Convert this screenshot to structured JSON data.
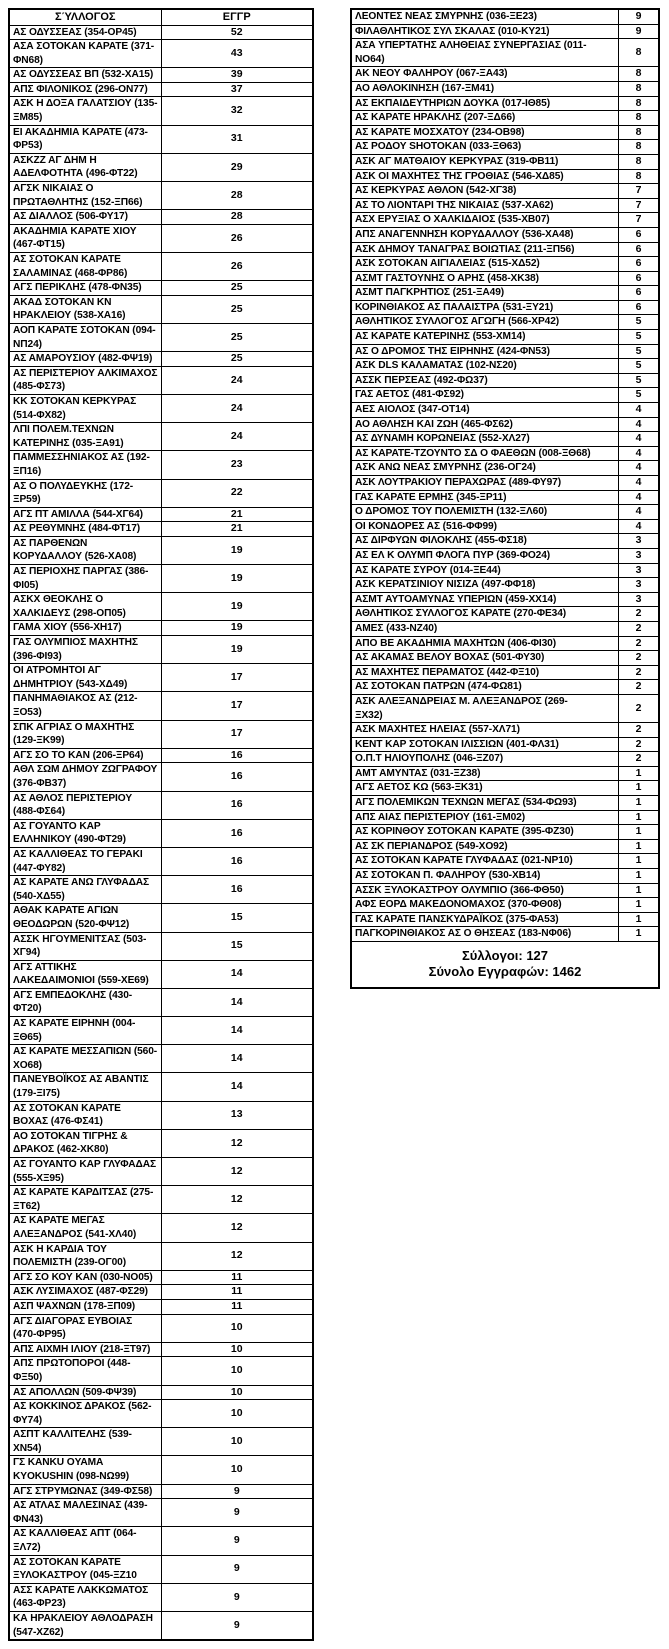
{
  "left_table": {
    "header": {
      "club": "ΣΎΛΛΟΓΟΣ",
      "count": "ΕΓΓΡ"
    },
    "rows": [
      {
        "club": "ΑΣ ΟΔΥΣΣΕΑΣ (354-ΟΡ45)",
        "count": 52
      },
      {
        "club": "ΑΣΑ ΣΟΤΟΚΑΝ ΚΑΡΑΤΕ (371-ΦΝ68)",
        "count": 43
      },
      {
        "club": "ΑΣ ΟΔΥΣΣΕΑΣ ΒΠ (532-ΧΑ15)",
        "count": 39
      },
      {
        "club": "ΑΠΣ ΦΙΛΟΝΙΚΟΣ (296-ΟΝ77)",
        "count": 37
      },
      {
        "club": "ΑΣΚ Η ΔΟΞΑ ΓΑΛΑΤΣΙΟΥ (135-ΞΜ85)",
        "count": 32
      },
      {
        "club": "ΕΙ ΑΚΑΔΗΜΙΑ ΚΑΡΑΤΕ (473-ΦΡ53)",
        "count": 31
      },
      {
        "club": "ΑΣΚΖΖ ΑΓ ΔΗΜ Η ΑΔΕΛΦΟΤΗΤΑ (496-ΦΤ22)",
        "count": 29
      },
      {
        "club": "ΑΓΣΚ ΝΙΚΑΙΑΣ Ο ΠΡΩΤΑΘΛΗΤΗΣ (152-ΞΠ66)",
        "count": 28
      },
      {
        "club": "ΑΣ ΔΙΑΛΛΟΣ (506-ΦΥ17)",
        "count": 28
      },
      {
        "club": "ΑΚΑΔΗΜΙΑ ΚΑΡΑΤΕ ΧΙΟΥ (467-ΦΤ15)",
        "count": 26
      },
      {
        "club": "ΑΣ ΣΟΤΟΚΑΝ ΚΑΡΑΤΕ ΣΑΛΑΜΙΝΑΣ (468-ΦΡ86)",
        "count": 26
      },
      {
        "club": "ΑΓΣ ΠΕΡΙΚΛΗΣ (478-ΦΝ35)",
        "count": 25
      },
      {
        "club": "ΑΚΑΔ ΣΟΤΟΚΑΝ ΚΝ ΗΡΑΚΛΕΙΟΥ (538-ΧΑ16)",
        "count": 25
      },
      {
        "club": "ΑΟΠ ΚΑΡΑΤΕ ΣΟΤΟΚΑΝ (094-ΝΠ24)",
        "count": 25
      },
      {
        "club": "ΑΣ ΑΜΑΡΟΥΣΙΟΥ (482-ΦΨ19)",
        "count": 25
      },
      {
        "club": "ΑΣ ΠΕΡΙΣΤΕΡΙΟΥ ΑΛΚΙΜΑΧΟΣ (485-ΦΣ73)",
        "count": 24
      },
      {
        "club": "ΚΚ ΣΟΤΟΚΑΝ ΚΕΡΚΥΡΑΣ (514-ΦΧ82)",
        "count": 24
      },
      {
        "club": "ΛΠΙ ΠΟΛΕΜ.ΤΕΧΝΩΝ ΚΑΤΕΡΙΝΗΣ (035-ΞΑ91)",
        "count": 24
      },
      {
        "club": "ΠΑΜΜΕΣΣΗΝΙΑΚΟΣ ΑΣ (192-ΞΠ16)",
        "count": 23
      },
      {
        "club": "ΑΣ Ο ΠΟΛΥΔΕΥΚΗΣ (172-ΞΡ59)",
        "count": 22
      },
      {
        "club": "ΑΓΣ ΠΤ ΑΜΙΛΛΑ (544-ΧΓ64)",
        "count": 21
      },
      {
        "club": "ΑΣ ΡΕΘΥΜΝΗΣ (484-ΦΤ17)",
        "count": 21
      },
      {
        "club": "ΑΣ ΠΑΡΘΕΝΩΝ ΚΟΡΥΔΑΛΛΟΥ (526-ΧΑ08)",
        "count": 19
      },
      {
        "club": "ΑΣ ΠΕΡΙΟΧΗΣ ΠΑΡΓΑΣ (386-ΦΙ05)",
        "count": 19
      },
      {
        "club": "ΑΣΚΧ ΘΕΟΚΛΗΣ Ο ΧΑΛΚΙΔΕΥΣ (298-ΟΠ05)",
        "count": 19
      },
      {
        "club": "ΓΑΜΑ ΧΙΟΥ (556-ΧΗ17)",
        "count": 19
      },
      {
        "club": "ΓΑΣ ΟΛΥΜΠΙΟΣ ΜΑΧΗΤΗΣ (396-ΦΙ93)",
        "count": 19
      },
      {
        "club": "ΟΙ ΑΤΡΟΜΗΤΟΙ ΑΓ ΔΗΜΗΤΡΙΟΥ (543-ΧΔ49)",
        "count": 17
      },
      {
        "club": "ΠΑΝΗΜΑΘΙΑΚΟΣ ΑΣ (212-ΞΟ53)",
        "count": 17
      },
      {
        "club": "ΣΠΚ ΑΓΡΙΑΣ Ο ΜΑΧΗΤΗΣ (129-ΞΚ99)",
        "count": 17
      },
      {
        "club": "ΑΓΣ ΣΟ ΤΟ ΚΑΝ (206-ΞΡ64)",
        "count": 16
      },
      {
        "club": "ΑΘΛ ΣΩΜ ΔΗΜΟΥ ΖΩΓΡΑΦΟΥ (376-ΦΒ37)",
        "count": 16
      },
      {
        "club": "ΑΣ ΑΘΛΟΣ ΠΕΡΙΣΤΕΡΙΟΥ (488-ΦΣ64)",
        "count": 16
      },
      {
        "club": "ΑΣ ΓΟΥΑΝΤΟ ΚΑΡ ΕΛΛΗΝΙΚΟΥ (490-ΦΤ29)",
        "count": 16
      },
      {
        "club": "ΑΣ ΚΑΛΛΙΘΕΑΣ ΤΟ ΓΕΡΑΚΙ (447-ΦΥ82)",
        "count": 16
      },
      {
        "club": "ΑΣ ΚΑΡΑΤΕ ΑΝΩ ΓΛΥΦΑΔΑΣ (540-ΧΔ55)",
        "count": 16
      },
      {
        "club": "ΑΘΑΚ ΚΑΡΑΤΕ ΑΓΙΩΝ ΘΕΟΔΩΡΩΝ (520-ΦΨ12)",
        "count": 15
      },
      {
        "club": "ΑΣΣΚ ΗΓΟΥΜΕΝΙΤΣΑΣ (503-ΧΓ94)",
        "count": 15
      },
      {
        "club": "ΑΓΣ ΑΤΤΙΚΗΣ ΛΑΚΕΔΑΙΜΟΝΙΟΙ (559-ΧΕ69)",
        "count": 14
      },
      {
        "club": "ΑΓΣ ΕΜΠΕΔΟΚΛΗΣ (430-ΦΤ20)",
        "count": 14
      },
      {
        "club": "ΑΣ ΚΑΡΑΤΕ ΕΙΡΗΝΗ (004-ΞΘ65)",
        "count": 14
      },
      {
        "club": "ΑΣ ΚΑΡΑΤΕ ΜΕΣΣΑΠΙΩΝ (560-ΧΟ68)",
        "count": 14
      },
      {
        "club": "ΠΑΝΕΥΒΟΪΚΟΣ ΑΣ ΑΒΑΝΤΙΣ (179-ΞΙ75)",
        "count": 14
      },
      {
        "club": "ΑΣ ΣΟΤΟΚΑΝ ΚΑΡΑΤΕ ΒΟΧΑΣ (476-ΦΣ41)",
        "count": 13
      },
      {
        "club": "ΑΟ ΣΟΤΟΚΑΝ ΤΙΓΡΗΣ & ΔΡΑΚΟΣ (462-ΧΚ80)",
        "count": 12
      },
      {
        "club": "ΑΣ ΓΟΥΑΝΤΟ ΚΑΡ ΓΛΥΦΑΔΑΣ (555-ΧΞ95)",
        "count": 12
      },
      {
        "club": "ΑΣ ΚΑΡΑΤΕ ΚΑΡΔΙΤΣΑΣ (275-ΞΤ62)",
        "count": 12
      },
      {
        "club": "ΑΣ ΚΑΡΑΤΕ ΜΕΓΑΣ ΑΛΕΞΑΝΔΡΟΣ (541-ΧΛ40)",
        "count": 12
      },
      {
        "club": "ΑΣΚ Η ΚΑΡΔΙΑ ΤΟΥ ΠΟΛΕΜΙΣΤΗ (239-ΟΓ00)",
        "count": 12
      },
      {
        "club": "ΑΓΣ ΣΟ ΚΟΥ ΚΑΝ (030-ΝΟ05)",
        "count": 11
      },
      {
        "club": "ΑΣΚ ΛΥΣΙΜΑΧΟΣ (487-ΦΣ29)",
        "count": 11
      },
      {
        "club": "ΑΣΠ ΨΑΧΝΩΝ (178-ΞΠ09)",
        "count": 11
      },
      {
        "club": "ΑΓΣ ΔΙΑΓΟΡΑΣ ΕΥΒΟΙΑΣ (470-ΦΡ95)",
        "count": 10
      },
      {
        "club": "ΑΠΣ ΑΙΧΜΗ ΙΛΙΟΥ (218-ΞΤ97)",
        "count": 10
      },
      {
        "club": "ΑΠΣ ΠΡΩΤΟΠΟΡΟΙ (448-ΦΞ50)",
        "count": 10
      },
      {
        "club": "ΑΣ ΑΠΟΛΛΩΝ (509-ΦΨ39)",
        "count": 10
      },
      {
        "club": "ΑΣ ΚΟΚΚΙΝΟΣ ΔΡΑΚΟΣ (562-ΦΥ74)",
        "count": 10
      },
      {
        "club": "ΑΣΠΤ ΚΑΛΛΙΤΕΛΗΣ (539-ΧΝ54)",
        "count": 10
      },
      {
        "club": "ΓΣ KANKU OYAMA KYOKUSHIN (098-ΝΩ99)",
        "count": 10
      },
      {
        "club": "ΑΓΣ ΣΤΡΥΜΩΝΑΣ (349-ΦΣ58)",
        "count": 9
      },
      {
        "club": "ΑΣ ΑΤΛΑΣ ΜΑΛΕΣΙΝΑΣ (439-ΦΝ43)",
        "count": 9
      },
      {
        "club": "ΑΣ ΚΑΛΛΙΘΕΑΣ ΑΠΤ (064-ΞΛ72)",
        "count": 9
      },
      {
        "club": "ΑΣ ΣΟΤΟΚΑΝ ΚΑΡΑΤΕ ΞΥΛΟΚΑΣΤΡΟΥ (045-ΞΖ10",
        "count": 9
      },
      {
        "club": "ΑΣΣ ΚΑΡΑΤΕ ΛΑΚΚΩΜΑΤΟΣ (463-ΦΡ23)",
        "count": 9
      },
      {
        "club": "ΚΑ ΗΡΑΚΛΕΙΟΥ ΑΘΛΟΔΡΑΣΗ (547-ΧΖ62)",
        "count": 9
      }
    ]
  },
  "right_table": {
    "rows": [
      {
        "club": "ΛΕΟΝΤΕΣ ΝΕΑΣ ΣΜΥΡΝΗΣ (036-ΞΕ23)",
        "count": 9
      },
      {
        "club": "ΦΙΛΑΘΛΗΤΙΚΟΣ ΣΥΛ ΣΚΑΛΑΣ (010-ΚΥ21)",
        "count": 9
      },
      {
        "club": "ΑΣΑ ΥΠΕΡΤΑΤΗΣ ΑΛΗΘΕΙΑΣ ΣΥΝΕΡΓΑΣΙΑΣ (011-\nΝΟ64)",
        "count": 8
      },
      {
        "club": "ΑΚ ΝΕΟΥ ΦΑΛΗΡΟΥ (067-ΞΑ43)",
        "count": 8
      },
      {
        "club": "ΑΟ ΑΘΛΟΚΙΝΗΣΗ (167-ΞΜ41)",
        "count": 8
      },
      {
        "club": "ΑΣ ΕΚΠΑΙΔΕΥΤΗΡΙΩΝ ΔΟΥΚΑ (017-ΙΘ85)",
        "count": 8
      },
      {
        "club": "ΑΣ ΚΑΡΑΤΕ ΗΡΑΚΛΗΣ (207-ΞΔ66)",
        "count": 8
      },
      {
        "club": "ΑΣ ΚΑΡΑΤΕ ΜΟΣΧΑΤΟΥ (234-ΟΒ98)",
        "count": 8
      },
      {
        "club": "ΑΣ ΡΟΔΟΥ SHOTOKAN (033-ΞΘ63)",
        "count": 8
      },
      {
        "club": "ΑΣΚ ΑΓ ΜΑΤΘΑΙΟΥ ΚΕΡΚΥΡΑΣ (319-ΦΒ11)",
        "count": 8
      },
      {
        "club": "ΑΣΚ ΟΙ ΜΑΧΗΤΕΣ ΤΗΣ ΓΡΟΘΙΑΣ (546-ΧΔ85)",
        "count": 8
      },
      {
        "club": "ΑΣ ΚΕΡΚΥΡΑΣ ΑΘΛΟΝ (542-ΧΓ38)",
        "count": 7
      },
      {
        "club": "ΑΣ ΤΟ ΛΙΟΝΤΑΡΙ ΤΗΣ ΝΙΚΑΙΑΣ (537-ΧΑ62)",
        "count": 7
      },
      {
        "club": "ΑΣΧ ΕΡΥΞΙΑΣ Ο ΧΑΛΚΙΔΑΙΟΣ (535-ΧΒ07)",
        "count": 7
      },
      {
        "club": "ΑΠΣ ΑΝΑΓΕΝΝΗΣΗ ΚΟΡΥΔΑΛΛΟΥ (536-ΧΑ48)",
        "count": 6
      },
      {
        "club": "ΑΣΚ ΔΗΜΟΥ ΤΑΝΑΓΡΑΣ ΒΟΙΩΤΙΑΣ (211-ΞΠ56)",
        "count": 6
      },
      {
        "club": "ΑΣΚ ΣΟΤΟΚΑΝ ΑΙΓΙΑΛΕΙΑΣ (515-ΧΔ52)",
        "count": 6
      },
      {
        "club": "ΑΣΜΤ ΓΑΣΤΟΥΝΗΣ Ο ΑΡΗΣ (458-ΧΚ38)",
        "count": 6
      },
      {
        "club": "ΑΣΜΤ ΠΑΓΚΡΗΤΙΟΣ (251-ΞΑ49)",
        "count": 6
      },
      {
        "club": "ΚΟΡΙΝΘΙΑΚΟΣ ΑΣ ΠΑΛΑΙΣΤΡΑ (531-ΞΥ21)",
        "count": 6
      },
      {
        "club": "ΑΘΛΗΤΙΚΟΣ ΣΥΛΛΟΓΟΣ ΑΓΩΓΗ (566-ΧΡ42)",
        "count": 5
      },
      {
        "club": "ΑΣ ΚΑΡΑΤΕ ΚΑΤΕΡΙΝΗΣ (553-ΧΜ14)",
        "count": 5
      },
      {
        "club": "ΑΣ Ο ΔΡΟΜΟΣ ΤΗΣ ΕΙΡΗΝΗΣ (424-ΦΝ53)",
        "count": 5
      },
      {
        "club": "ΑΣΚ DLS ΚΑΛΑΜΑΤΑΣ (102-ΝΣ20)",
        "count": 5
      },
      {
        "club": "ΑΣΣΚ ΠΕΡΣΕΑΣ (492-ΦΩ37)",
        "count": 5
      },
      {
        "club": "ΓΑΣ ΑΕΤΟΣ (481-ΦΣ92)",
        "count": 5
      },
      {
        "club": "ΑΕΣ ΑΙΟΛΟΣ (347-ΟΤ14)",
        "count": 4
      },
      {
        "club": "ΑΟ ΑΘΛΗΣΗ ΚΑΙ ΖΩΗ (465-ΦΣ62)",
        "count": 4
      },
      {
        "club": "ΑΣ ΔΥΝΑΜΗ ΚΟΡΩΝΕΙΑΣ (552-ΧΛ27)",
        "count": 4
      },
      {
        "club": "ΑΣ ΚΑΡΑΤΕ-ΤΖΟΥΝΤΟ ΣΔ Ο ΦΑΕΘΩΝ (008-ΞΘ68)",
        "count": 4
      },
      {
        "club": "ΑΣΚ ΑΝΩ ΝΕΑΣ ΣΜΥΡΝΗΣ (236-ΟΓ24)",
        "count": 4
      },
      {
        "club": "ΑΣΚ ΛΟΥΤΡΑΚΙΟΥ ΠΕΡΑΧΩΡΑΣ (489-ΦΥ97)",
        "count": 4
      },
      {
        "club": "ΓΑΣ ΚΑΡΑΤΕ ΕΡΜΗΣ (345-ΞΡ11)",
        "count": 4
      },
      {
        "club": "Ο ΔΡΟΜΟΣ ΤΟΥ ΠΟΛΕΜΙΣΤΗ (132-ΞΛ60)",
        "count": 4
      },
      {
        "club": "ΟΙ ΚΟΝΔΟΡΕΣ ΑΣ (516-ΦΦ99)",
        "count": 4
      },
      {
        "club": "ΑΣ ΔΙΡΦΥΩΝ ΦΙΛΟΚΛΗΣ (455-ΦΣ18)",
        "count": 3
      },
      {
        "club": "ΑΣ ΕΛ Κ ΟΛΥΜΠ ΦΛΟΓΑ ΠΥΡ (369-ΦΟ24)",
        "count": 3
      },
      {
        "club": "ΑΣ ΚΑΡΑΤΕ ΣΥΡΟΥ (014-ΞΕ44)",
        "count": 3
      },
      {
        "club": "ΑΣΚ ΚΕΡΑΤΣΙΝΙΟΥ ΝΙΣΙΖΑ (497-ΦΦ18)",
        "count": 3
      },
      {
        "club": "ΑΣΜΤ ΑΥΤΟΑΜΥΝΑΣ ΥΠΕΡΙΩΝ (459-ΧΧ14)",
        "count": 3
      },
      {
        "club": "ΑΘΛΗΤΙΚΟΣ ΣΥΛΛΟΓΟΣ ΚΑΡΑΤΕ (270-ΦΕ34)",
        "count": 2
      },
      {
        "club": "ΑΜΕΣ (433-ΝΖ40)",
        "count": 2
      },
      {
        "club": "ΑΠΟ ΒΕ ΑΚΑΔΗΜΙΑ ΜΑΧΗΤΩΝ (406-ΦΙ30)",
        "count": 2
      },
      {
        "club": "ΑΣ ΑΚΑΜΑΣ ΒΕΛΟΥ ΒΟΧΑΣ (501-ΦΥ30)",
        "count": 2
      },
      {
        "club": "ΑΣ ΜΑΧΗΤΕΣ ΠΕΡΑΜΑΤΟΣ (442-ΦΞ10)",
        "count": 2
      },
      {
        "club": "ΑΣ ΣΟΤΟΚΑΝ ΠΑΤΡΩΝ (474-ΦΩ81)",
        "count": 2
      },
      {
        "club": "ΑΣΚ ΑΛΕΞΑΝΔΡΕΙΑΣ Μ. ΑΛΕΞΑΝΔΡΟΣ (269-\nΞΧ32)",
        "count": 2
      },
      {
        "club": "ΑΣΚ ΜΑΧΗΤΕΣ ΗΛΕΙΑΣ (557-ΧΛ71)",
        "count": 2
      },
      {
        "club": "ΚΕΝΤ ΚΑΡ ΣΟΤΟΚΑΝ ΙΛΙΣΣΙΩΝ (401-ΦΛ31)",
        "count": 2
      },
      {
        "club": "Ο.Π.Τ ΗΛΙΟΥΠΟΛΗΣ (046-ΞΖ07)",
        "count": 2
      },
      {
        "club": "ΑΜΤ ΑΜΥΝΤΑΣ (031-ΞΖ38)",
        "count": 1
      },
      {
        "club": "ΑΓΣ ΑΕΤΟΣ ΚΩ (563-ΞΚ31)",
        "count": 1
      },
      {
        "club": "ΑΓΣ ΠΟΛΕΜΙΚΩΝ ΤΕΧΝΩΝ ΜΕΓΑΣ (534-ΦΩ93)",
        "count": 1
      },
      {
        "club": "ΑΠΣ ΑΙΑΣ ΠΕΡΙΣΤΕΡΙΟΥ (161-ΞΜ02)",
        "count": 1
      },
      {
        "club": "ΑΣ ΚΟΡΙΝΘΟΥ ΣΟΤΟΚΑΝ ΚΑΡΑΤΕ (395-ΦΖ30)",
        "count": 1
      },
      {
        "club": "ΑΣ ΣΚ ΠΕΡΙΑΝΔΡΟΣ (549-ΧΟ92)",
        "count": 1
      },
      {
        "club": "ΑΣ ΣΟΤΟΚΑΝ ΚΑΡΑΤΕ ΓΛΥΦΑΔΑΣ (021-ΝΡ10)",
        "count": 1
      },
      {
        "club": "ΑΣ ΣΟΤΟΚΑΝ Π. ΦΑΛΗΡΟΥ (530-ΧΒ14)",
        "count": 1
      },
      {
        "club": "ΑΣΣΚ ΞΥΛΟΚΑΣΤΡΟΥ ΟΛΥΜΠΙΟ (366-ΦΘ50)",
        "count": 1
      },
      {
        "club": "ΑΦΣ ΕΟΡΔ ΜΑΚΕΔΟΝΟΜΑΧΟΣ (370-ΦΘ08)",
        "count": 1
      },
      {
        "club": "ΓΑΣ ΚΑΡΑΤΕ ΠΑΝΣΚΥΔΡΑΪΚΟΣ (375-ΦΑ53)",
        "count": 1
      },
      {
        "club": "ΠΑΓΚΟΡΙΝΘΙΑΚΟΣ ΑΣ Ο ΘΗΣΕΑΣ (183-ΝΦ06)",
        "count": 1
      }
    ],
    "footer": {
      "clubs": "Σύλλογοι: 127",
      "total": "Σύνολο Εγγραφών: 1462"
    }
  }
}
